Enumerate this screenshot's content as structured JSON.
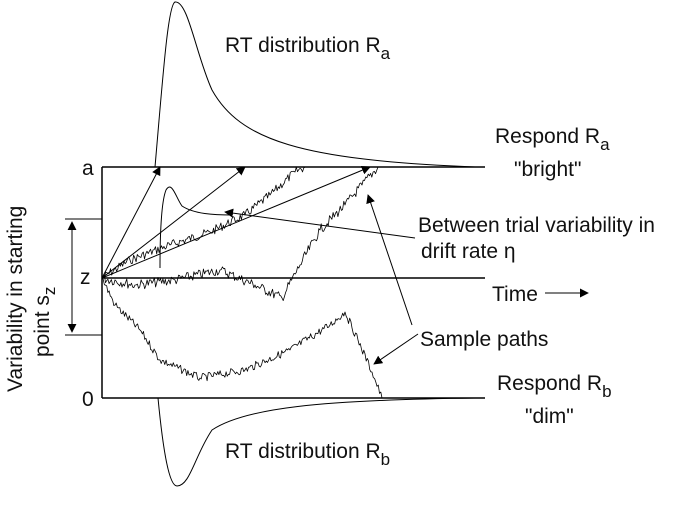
{
  "labels": {
    "rt_top_main": "RT distribution R",
    "rt_top_sub": "a",
    "rt_bottom_main": "RT distribution R",
    "rt_bottom_sub": "b",
    "respond_a_main": "Respond R",
    "respond_a_sub": "a",
    "respond_a_word": "\"bright\"",
    "respond_b_main": "Respond R",
    "respond_b_sub": "b",
    "respond_b_word": "\"dim\"",
    "between_line1": "Between trial variability in",
    "between_line2": "drift rate η",
    "time": "Time",
    "time_arrow": "—▶",
    "sample_paths": "Sample paths",
    "boundary_a": "a",
    "start_z": "z",
    "boundary_0": "0",
    "y_axis_line1": "Variability in starting",
    "y_axis_line2_main": "point s",
    "y_axis_line2_sub": "z"
  }
}
